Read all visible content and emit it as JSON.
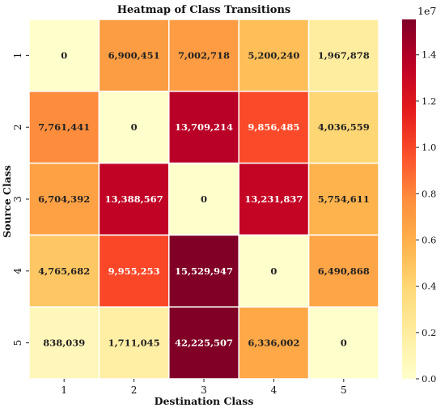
{
  "chart_data": {
    "type": "heatmap",
    "title": "Heatmap of Class Transitions",
    "xlabel": "Destination Class",
    "ylabel": "Source Class",
    "x_categories": [
      "1",
      "2",
      "3",
      "4",
      "5"
    ],
    "y_categories": [
      "1",
      "2",
      "3",
      "4",
      "5"
    ],
    "values": [
      [
        0,
        6900451,
        7002718,
        5200240,
        1967878
      ],
      [
        7761441,
        0,
        13709214,
        9856485,
        4036559
      ],
      [
        6704392,
        13388567,
        0,
        13231837,
        5754611
      ],
      [
        4765682,
        9955253,
        15529947,
        0,
        6490868
      ],
      [
        838039,
        1711045,
        42225507,
        6336002,
        0
      ]
    ],
    "cell_labels": [
      [
        "0",
        "6,900,451",
        "7,002,718",
        "5,200,240",
        "1,967,878"
      ],
      [
        "7,761,441",
        "0",
        "13,709,214",
        "9,856,485",
        "4,036,559"
      ],
      [
        "6,704,392",
        "13,388,567",
        "0",
        "13,231,837",
        "5,754,611"
      ],
      [
        "4,765,682",
        "9,955,253",
        "15,529,947",
        "0",
        "6,490,868"
      ],
      [
        "838,039",
        "1,711,045",
        "42,225,507",
        "6,336,002",
        "0"
      ]
    ],
    "colormap": "YlOrRd",
    "color_range": [
      0,
      15529947
    ],
    "colorbar": {
      "exponent_label": "1e7",
      "ticks": [
        0.0,
        0.2,
        0.4,
        0.6,
        0.8,
        1.0,
        1.2,
        1.4
      ],
      "tick_labels": [
        "0.0",
        "0.2",
        "0.4",
        "0.6",
        "0.8",
        "1.0",
        "1.2",
        "1.4"
      ],
      "placement": "right"
    },
    "cell_separator_color": "#ffffff"
  }
}
